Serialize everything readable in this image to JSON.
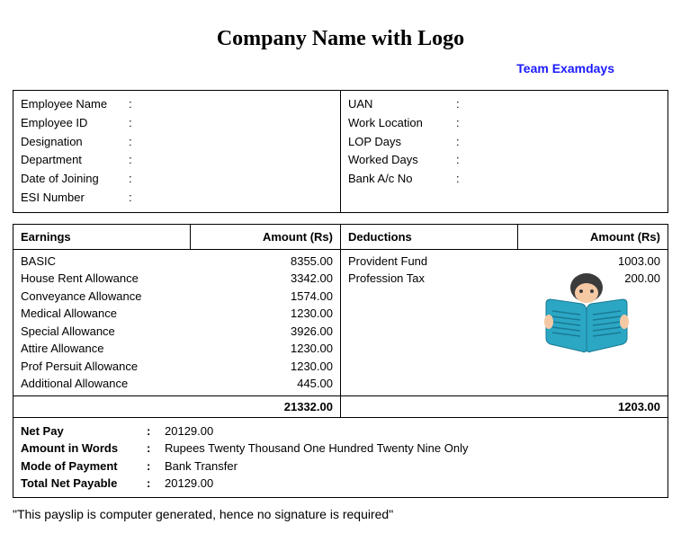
{
  "header": {
    "company_title": "Company Name with Logo",
    "team_label": "Team Examdays"
  },
  "employee_left": {
    "labels": [
      "Employee Name",
      "Employee ID",
      "Designation",
      "Department",
      "Date of Joining",
      "ESI Number"
    ],
    "values": [
      "",
      "",
      "",
      "",
      "",
      ""
    ]
  },
  "employee_right": {
    "labels": [
      "UAN",
      "Work Location",
      "LOP Days",
      "Worked Days",
      "Bank A/c No"
    ],
    "values": [
      "",
      "",
      "",
      "",
      ""
    ]
  },
  "earnings": {
    "header_label": "Earnings",
    "header_amount": "Amount (Rs)",
    "items": [
      {
        "label": "BASIC",
        "amount": "8355.00"
      },
      {
        "label": "House Rent Allowance",
        "amount": "3342.00"
      },
      {
        "label": "Conveyance Allowance",
        "amount": "1574.00"
      },
      {
        "label": "Medical Allowance",
        "amount": "1230.00"
      },
      {
        "label": "Special Allowance",
        "amount": "3926.00"
      },
      {
        "label": "Attire Allowance",
        "amount": "1230.00"
      },
      {
        "label": "Prof Persuit Allowance",
        "amount": "1230.00"
      },
      {
        "label": "Additional Allowance",
        "amount": "445.00"
      }
    ],
    "total": "21332.00"
  },
  "deductions": {
    "header_label": "Deductions",
    "header_amount": "Amount (Rs)",
    "items": [
      {
        "label": "Provident Fund",
        "amount": "1003.00"
      },
      {
        "label": "Profession Tax",
        "amount": "200.00"
      }
    ],
    "total": "1203.00"
  },
  "netpay": {
    "rows": [
      {
        "label": "Net Pay",
        "value": "20129.00"
      },
      {
        "label": "Amount in Words",
        "value": "Rupees Twenty Thousand One Hundred Twenty Nine Only"
      },
      {
        "label": "Mode of Payment",
        "value": "Bank Transfer"
      },
      {
        "label": "Total Net Payable",
        "value": "20129.00"
      }
    ]
  },
  "footer": {
    "note": "\"This payslip is computer generated, hence no signature is required\""
  },
  "styling": {
    "border_color": "#000000",
    "background_color": "#ffffff",
    "text_color": "#000000",
    "team_link_color": "#1a1aff",
    "font_size_body": 13,
    "font_size_title": 24,
    "font_size_team": 14,
    "font_size_footer": 14,
    "icon_colors": {
      "book_cover": "#2ba7c4",
      "book_pages": "#ffffff",
      "book_lines": "#1a7a94",
      "hair": "#3b3b3b",
      "skin": "#f5c9a3"
    }
  }
}
